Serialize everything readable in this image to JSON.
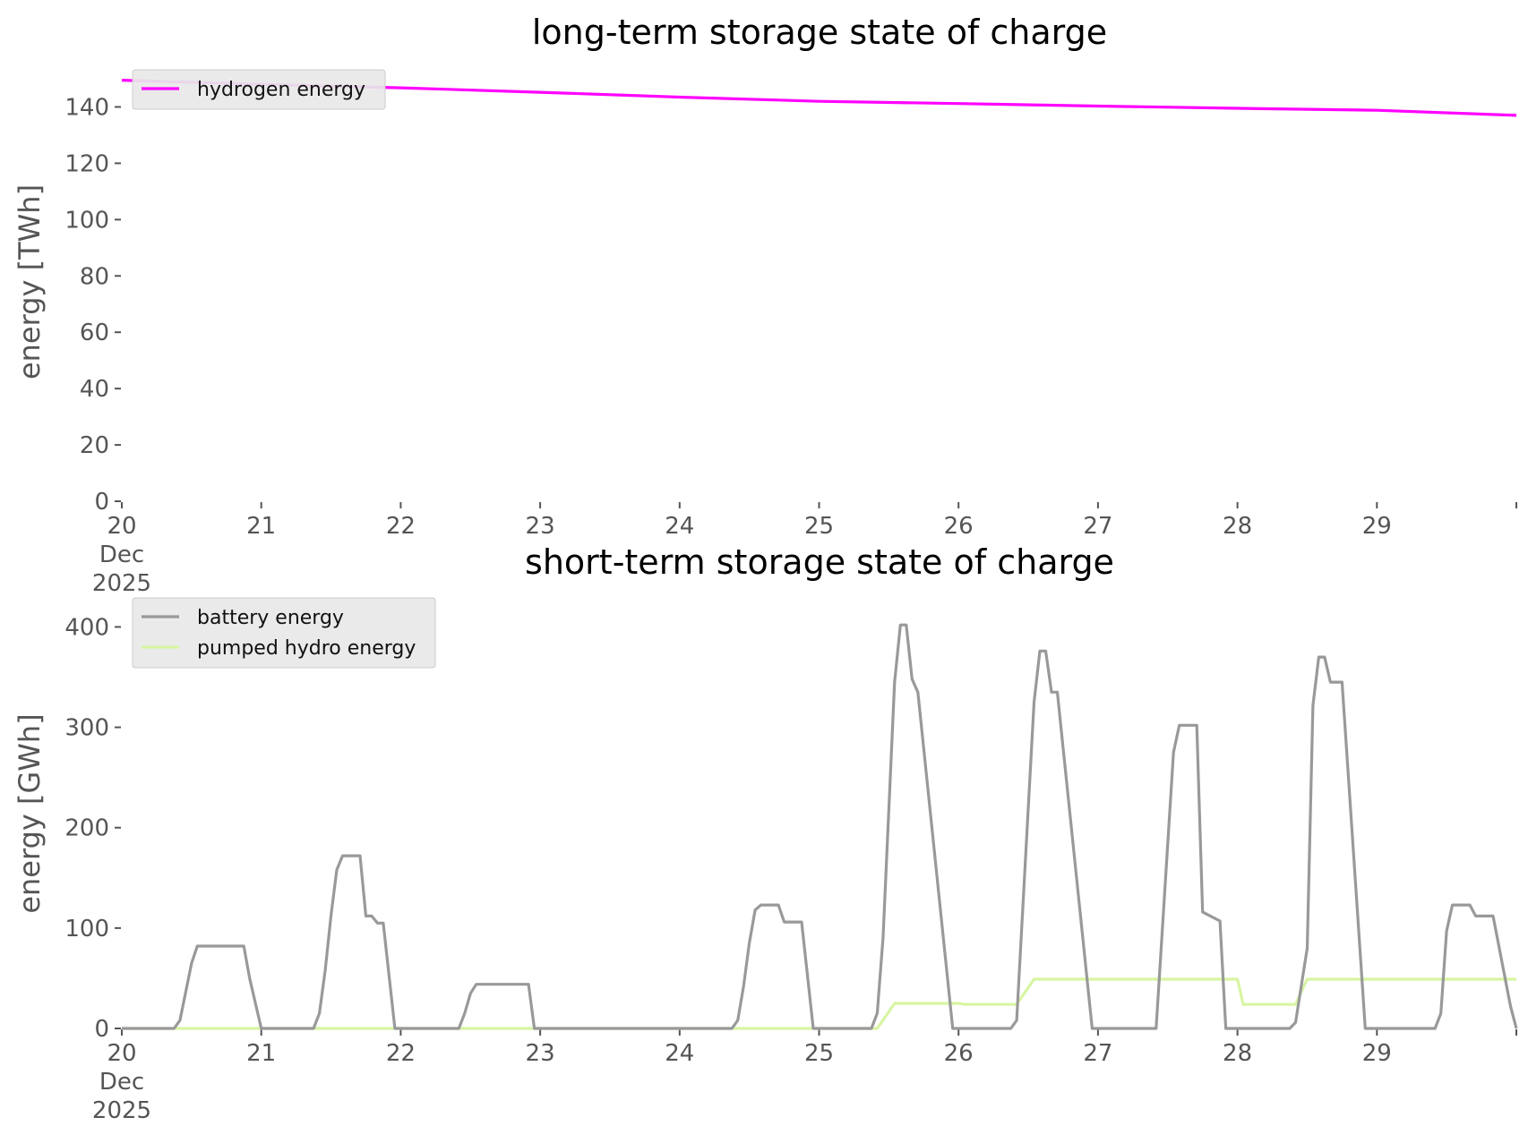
{
  "chart_data": [
    {
      "type": "line",
      "title": "long-term storage state of charge",
      "xlabel": "",
      "ylabel": "energy [TWh]",
      "x_tick_labels": [
        "20\nDec\n2025",
        "21",
        "22",
        "23",
        "24",
        "25",
        "26",
        "27",
        "28",
        "29"
      ],
      "x_ticks": [
        "2025-12-20",
        "2025-12-21",
        "2025-12-22",
        "2025-12-23",
        "2025-12-24",
        "2025-12-25",
        "2025-12-26",
        "2025-12-27",
        "2025-12-28",
        "2025-12-29",
        "2025-12-30"
      ],
      "xlim": [
        "2025-12-20",
        "2025-12-30"
      ],
      "ylim": [
        0,
        150
      ],
      "y_ticks": [
        0,
        20,
        40,
        60,
        80,
        100,
        120,
        140
      ],
      "grid": false,
      "legend_position": "top-left",
      "series": [
        {
          "name": "hydrogen energy",
          "color": "#ff00ff",
          "x": [
            "2025-12-20",
            "2025-12-21",
            "2025-12-22",
            "2025-12-23",
            "2025-12-24",
            "2025-12-25",
            "2025-12-26",
            "2025-12-27",
            "2025-12-28",
            "2025-12-29",
            "2025-12-30"
          ],
          "y": [
            149.5,
            148,
            146.8,
            145.2,
            143.5,
            142,
            141.2,
            140.3,
            139.5,
            138.8,
            137
          ]
        }
      ]
    },
    {
      "type": "line",
      "title": "short-term storage state of charge",
      "xlabel": "",
      "ylabel": "energy [GWh]",
      "x_tick_labels": [
        "20\nDec\n2025",
        "21",
        "22",
        "23",
        "24",
        "25",
        "26",
        "27",
        "28",
        "29"
      ],
      "x_ticks": [
        "2025-12-20",
        "2025-12-21",
        "2025-12-22",
        "2025-12-23",
        "2025-12-24",
        "2025-12-25",
        "2025-12-26",
        "2025-12-27",
        "2025-12-28",
        "2025-12-29",
        "2025-12-30"
      ],
      "xlim": [
        "2025-12-20",
        "2025-12-30"
      ],
      "ylim": [
        0,
        420
      ],
      "y_ticks": [
        0,
        100,
        200,
        300,
        400
      ],
      "grid": false,
      "legend_position": "top-left",
      "series": [
        {
          "name": "battery energy",
          "color": "#999999",
          "x": [
            "2025-12-20 00:00",
            "2025-12-20 09:00",
            "2025-12-20 10:00",
            "2025-12-20 12:00",
            "2025-12-20 13:00",
            "2025-12-20 14:00",
            "2025-12-20 21:00",
            "2025-12-20 22:00",
            "2025-12-21 00:00",
            "2025-12-21 09:00",
            "2025-12-21 10:00",
            "2025-12-21 11:00",
            "2025-12-21 12:00",
            "2025-12-21 13:00",
            "2025-12-21 14:00",
            "2025-12-21 15:00",
            "2025-12-21 17:00",
            "2025-12-21 18:00",
            "2025-12-21 19:00",
            "2025-12-21 20:00",
            "2025-12-21 21:00",
            "2025-12-21 23:00",
            "2025-12-22 10:00",
            "2025-12-22 11:00",
            "2025-12-22 12:00",
            "2025-12-22 13:00",
            "2025-12-22 22:00",
            "2025-12-22 23:00",
            "2025-12-24 09:00",
            "2025-12-24 10:00",
            "2025-12-24 11:00",
            "2025-12-24 12:00",
            "2025-12-24 13:00",
            "2025-12-24 14:00",
            "2025-12-24 17:00",
            "2025-12-24 18:00",
            "2025-12-24 21:00",
            "2025-12-24 23:00",
            "2025-12-25 09:00",
            "2025-12-25 10:00",
            "2025-12-25 11:00",
            "2025-12-25 13:00",
            "2025-12-25 14:00",
            "2025-12-25 15:00",
            "2025-12-25 16:00",
            "2025-12-25 17:00",
            "2025-12-25 23:00",
            "2025-12-26 00:00",
            "2025-12-26 09:00",
            "2025-12-26 10:00",
            "2025-12-26 13:00",
            "2025-12-26 14:00",
            "2025-12-26 15:00",
            "2025-12-26 16:00",
            "2025-12-26 17:00",
            "2025-12-26 23:00",
            "2025-12-27 09:00",
            "2025-12-27 10:00",
            "2025-12-27 13:00",
            "2025-12-27 14:00",
            "2025-12-27 15:00",
            "2025-12-27 17:00",
            "2025-12-27 18:00",
            "2025-12-27 21:00",
            "2025-12-27 22:00",
            "2025-12-27 23:00",
            "2025-12-28 09:00",
            "2025-12-28 10:00",
            "2025-12-28 12:00",
            "2025-12-28 13:00",
            "2025-12-28 14:00",
            "2025-12-28 15:00",
            "2025-12-28 16:00",
            "2025-12-28 18:00",
            "2025-12-28 22:00",
            "2025-12-29 09:00",
            "2025-12-29 10:00",
            "2025-12-29 11:00",
            "2025-12-29 12:00",
            "2025-12-29 13:00",
            "2025-12-29 14:00",
            "2025-12-29 16:00",
            "2025-12-29 17:00",
            "2025-12-29 19:00",
            "2025-12-29 20:00",
            "2025-12-29 23:00",
            "2025-12-30 00:00"
          ],
          "y": [
            0,
            0,
            8,
            65,
            82,
            82,
            82,
            50,
            0,
            0,
            15,
            58,
            112,
            158,
            172,
            172,
            172,
            112,
            112,
            105,
            105,
            0,
            0,
            15,
            35,
            44,
            44,
            0,
            0,
            8,
            42,
            85,
            118,
            123,
            123,
            106,
            106,
            0,
            0,
            15,
            90,
            345,
            402,
            402,
            348,
            335,
            0,
            0,
            0,
            8,
            325,
            376,
            376,
            335,
            335,
            0,
            0,
            0,
            275,
            302,
            302,
            302,
            116,
            107,
            0,
            0,
            0,
            6,
            80,
            322,
            370,
            370,
            345,
            345,
            0,
            0,
            0,
            15,
            97,
            123,
            123,
            123,
            112,
            112,
            112,
            22,
            0
          ]
        },
        {
          "name": "pumped hydro energy",
          "color": "#d8f5a2",
          "x": [
            "2025-12-20 00:00",
            "2025-12-25 10:00",
            "2025-12-25 13:00",
            "2025-12-26 00:00",
            "2025-12-26 01:00",
            "2025-12-26 10:00",
            "2025-12-26 13:00",
            "2025-12-27 23:00",
            "2025-12-28 00:00",
            "2025-12-28 01:00",
            "2025-12-28 10:00",
            "2025-12-28 12:00",
            "2025-12-30 00:00"
          ],
          "y": [
            0,
            0,
            25,
            25,
            24,
            24,
            49,
            49,
            49,
            24,
            24,
            49,
            49
          ]
        }
      ]
    }
  ]
}
